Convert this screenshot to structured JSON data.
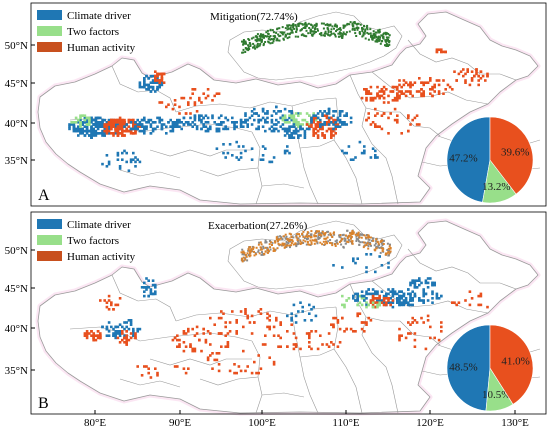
{
  "colors": {
    "climate": "#1f77b4",
    "two_factors": "#98df8a",
    "human": "#e8501e",
    "boundary": "#9a9a9a",
    "frame": "#000000",
    "halo": "#f4b6de",
    "inset_green": "#2f7a2f",
    "inset_orange": "#d9822b",
    "inset_gray": "#8a8a8a"
  },
  "legend": {
    "climate_label": "Climate driver",
    "two_factors_label": "Two factors",
    "human_label": "Human activity"
  },
  "axes": {
    "top_lat_ticks": [
      "50°N",
      "45°N",
      "40°N",
      "35°N"
    ],
    "bottom_lat_ticks": [
      "50°N",
      "45°N",
      "40°N",
      "35°N"
    ],
    "lon_ticks": [
      "80°E",
      "90°E",
      "100°E",
      "110°E",
      "120°E",
      "130°E"
    ]
  },
  "panels": {
    "top": {
      "letter": "A",
      "title": "Mitigation(72.74%)",
      "pie": [
        {
          "label": "47.2%",
          "value": 47.2,
          "series": "climate"
        },
        {
          "label": "13.2%",
          "value": 13.2,
          "series": "two_factors"
        },
        {
          "label": "39.6%",
          "value": 39.6,
          "series": "human"
        }
      ]
    },
    "bottom": {
      "letter": "B",
      "title": "Exacerbation(27.26%)",
      "pie": [
        {
          "label": "48.5%",
          "value": 48.5,
          "series": "climate"
        },
        {
          "label": "10.5%",
          "value": 10.5,
          "series": "two_factors"
        },
        {
          "label": "41.0%",
          "value": 41.0,
          "series": "human"
        }
      ]
    }
  }
}
